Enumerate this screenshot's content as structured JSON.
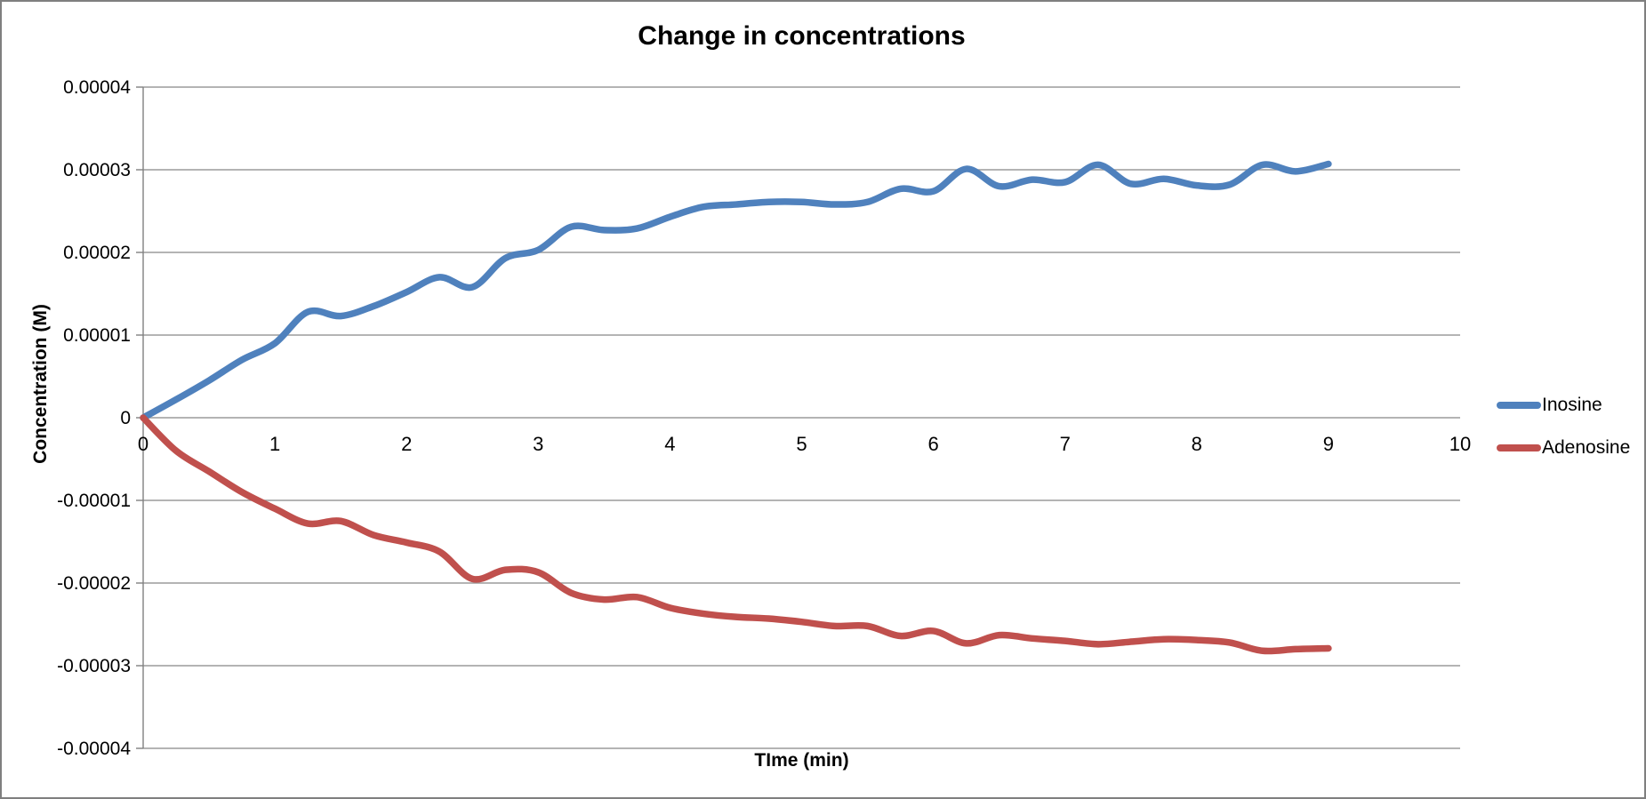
{
  "title": "Change in concentrations",
  "axes": {
    "x_label": "TIme (min)",
    "y_label": "Concentration (M)",
    "x_ticks": [
      0,
      1,
      2,
      3,
      4,
      5,
      6,
      7,
      8,
      9,
      10
    ],
    "y_ticks": [
      {
        "value": 4e-05,
        "label": "0.00004"
      },
      {
        "value": 3e-05,
        "label": "0.00003"
      },
      {
        "value": 2e-05,
        "label": "0.00002"
      },
      {
        "value": 1e-05,
        "label": "0.00001"
      },
      {
        "value": 0,
        "label": "0"
      },
      {
        "value": -1e-05,
        "label": "-0.00001"
      },
      {
        "value": -2e-05,
        "label": "-0.00002"
      },
      {
        "value": -3e-05,
        "label": "-0.00003"
      },
      {
        "value": -4e-05,
        "label": "-0.00004"
      }
    ]
  },
  "legend": {
    "position": "right",
    "items": [
      {
        "label": "Inosine",
        "color": "#4F81BD"
      },
      {
        "label": "Adenosine",
        "color": "#C0504D"
      }
    ]
  },
  "chart_data": {
    "type": "line",
    "title": "Change in concentrations",
    "xlabel": "TIme (min)",
    "ylabel": "Concentration (M)",
    "xlim": [
      0,
      10
    ],
    "ylim": [
      -4e-05,
      4e-05
    ],
    "grid": true,
    "smooth": true,
    "x": [
      0,
      0.25,
      0.5,
      0.75,
      1,
      1.25,
      1.5,
      1.75,
      2,
      2.25,
      2.5,
      2.75,
      3,
      3.25,
      3.5,
      3.75,
      4,
      4.25,
      4.5,
      4.75,
      5,
      5.25,
      5.5,
      5.75,
      6,
      6.25,
      6.5,
      6.75,
      7,
      7.25,
      7.5,
      7.75,
      8,
      8.25,
      8.5,
      8.75,
      9
    ],
    "series": [
      {
        "name": "Inosine",
        "color": "#4F81BD",
        "values": [
          0,
          2.2e-06,
          4.5e-06,
          7e-06,
          9e-06,
          1.28e-05,
          1.23e-05,
          1.35e-05,
          1.52e-05,
          1.7e-05,
          1.58e-05,
          1.93e-05,
          2.03e-05,
          2.31e-05,
          2.27e-05,
          2.29e-05,
          2.43e-05,
          2.55e-05,
          2.58e-05,
          2.61e-05,
          2.61e-05,
          2.58e-05,
          2.61e-05,
          2.77e-05,
          2.74e-05,
          3.01e-05,
          2.8e-05,
          2.88e-05,
          2.85e-05,
          3.06e-05,
          2.83e-05,
          2.89e-05,
          2.81e-05,
          2.82e-05,
          3.06e-05,
          2.98e-05,
          3.07e-05
        ]
      },
      {
        "name": "Adenosine",
        "color": "#C0504D",
        "values": [
          0,
          -4e-06,
          -6.5e-06,
          -9e-06,
          -1.1e-05,
          -1.28e-05,
          -1.25e-05,
          -1.42e-05,
          -1.51e-05,
          -1.62e-05,
          -1.95e-05,
          -1.84e-05,
          -1.87e-05,
          -2.12e-05,
          -2.2e-05,
          -2.17e-05,
          -2.3e-05,
          -2.37e-05,
          -2.41e-05,
          -2.43e-05,
          -2.47e-05,
          -2.52e-05,
          -2.52e-05,
          -2.64e-05,
          -2.58e-05,
          -2.73e-05,
          -2.63e-05,
          -2.67e-05,
          -2.7e-05,
          -2.74e-05,
          -2.71e-05,
          -2.68e-05,
          -2.69e-05,
          -2.72e-05,
          -2.82e-05,
          -2.8e-05,
          -2.79e-05
        ]
      }
    ]
  },
  "style": {
    "grid_color": "#9c9c9c",
    "axis_color": "#808080",
    "background": "#ffffff",
    "border_color": "#7f7f7f",
    "line_width": 7.5
  }
}
